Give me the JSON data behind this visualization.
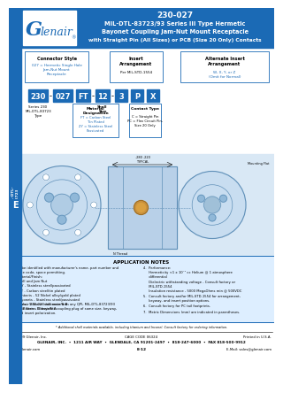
{
  "title_part": "230-027",
  "title_line2": "MIL-DTL-83723/93 Series III Type Hermetic",
  "title_line3": "Bayonet Coupling Jam-Nut Mount Receptacle",
  "title_line4": "with Straight Pin (All Sizes) or PCB (Size 20 Only) Contacts",
  "header_bg": "#1b6ab5",
  "header_text_color": "#ffffff",
  "side_tab_color": "#1b6ab5",
  "side_tab_text_color": "#ffffff",
  "logo_bg": "#ffffff",
  "logo_g_color": "#1b6ab5",
  "part_code_boxes": [
    "230",
    "027",
    "FT",
    "12",
    "3",
    "P",
    "X"
  ],
  "box_color": "#1b6ab5",
  "box_text_color": "#ffffff",
  "section_border_color": "#1b6ab5",
  "section_border_lw": 0.6,
  "blue_text_color": "#1b6ab5",
  "diagram_bg": "#d9e8f5",
  "diagram_line_color": "#6090b8",
  "e_tab_color": "#1b6ab5",
  "e_tab_text": "#ffffff",
  "notes_bg": "#ddeeff",
  "notes_border": "#1b6ab5",
  "app_notes_title": "APPLICATION NOTES",
  "footer_copyright": "© 2009 Glenair, Inc.",
  "footer_cage": "CAGE CODE 06324",
  "footer_printed": "Printed in U.S.A.",
  "footer_address": "GLENAIR, INC.  •  1211 AIR WAY  •  GLENDALE, CA 91201-2497  •  818-247-6000  •  FAX 818-500-9912",
  "footer_web": "www.glenair.com",
  "footer_page": "E-12",
  "footer_email": "E-Mail: sales@glenair.com",
  "footer_note": "* Additional shell materials available, including titanium and Inconel. Consult factory for ordering information."
}
